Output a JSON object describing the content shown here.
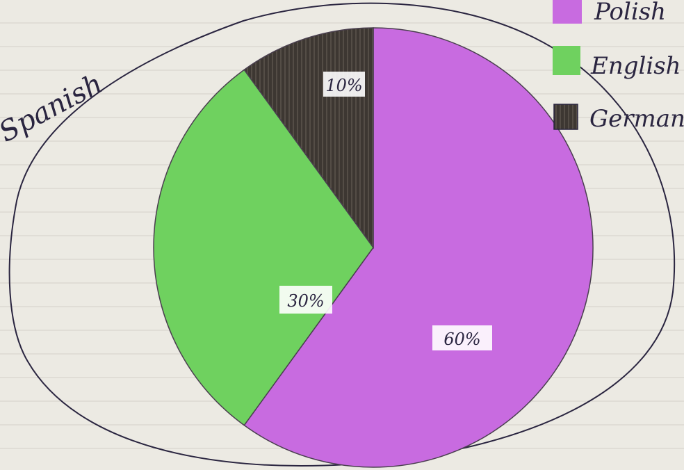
{
  "chart_data": {
    "type": "pie",
    "outer_label": "Spanish",
    "slices": [
      {
        "label": "Polish",
        "value": 60,
        "value_label": "60%",
        "color": "#c86be0"
      },
      {
        "label": "English",
        "value": 30,
        "value_label": "30%",
        "color": "#6fd15f"
      },
      {
        "label": "German",
        "value": 10,
        "value_label": "10%",
        "color": "#3d3732"
      }
    ],
    "legend": [
      {
        "label": "Polish",
        "color": "#c86be0"
      },
      {
        "label": "English",
        "color": "#6fd15f"
      },
      {
        "label": "German",
        "color": "#3d3732"
      }
    ],
    "legend_position": "top-right"
  }
}
